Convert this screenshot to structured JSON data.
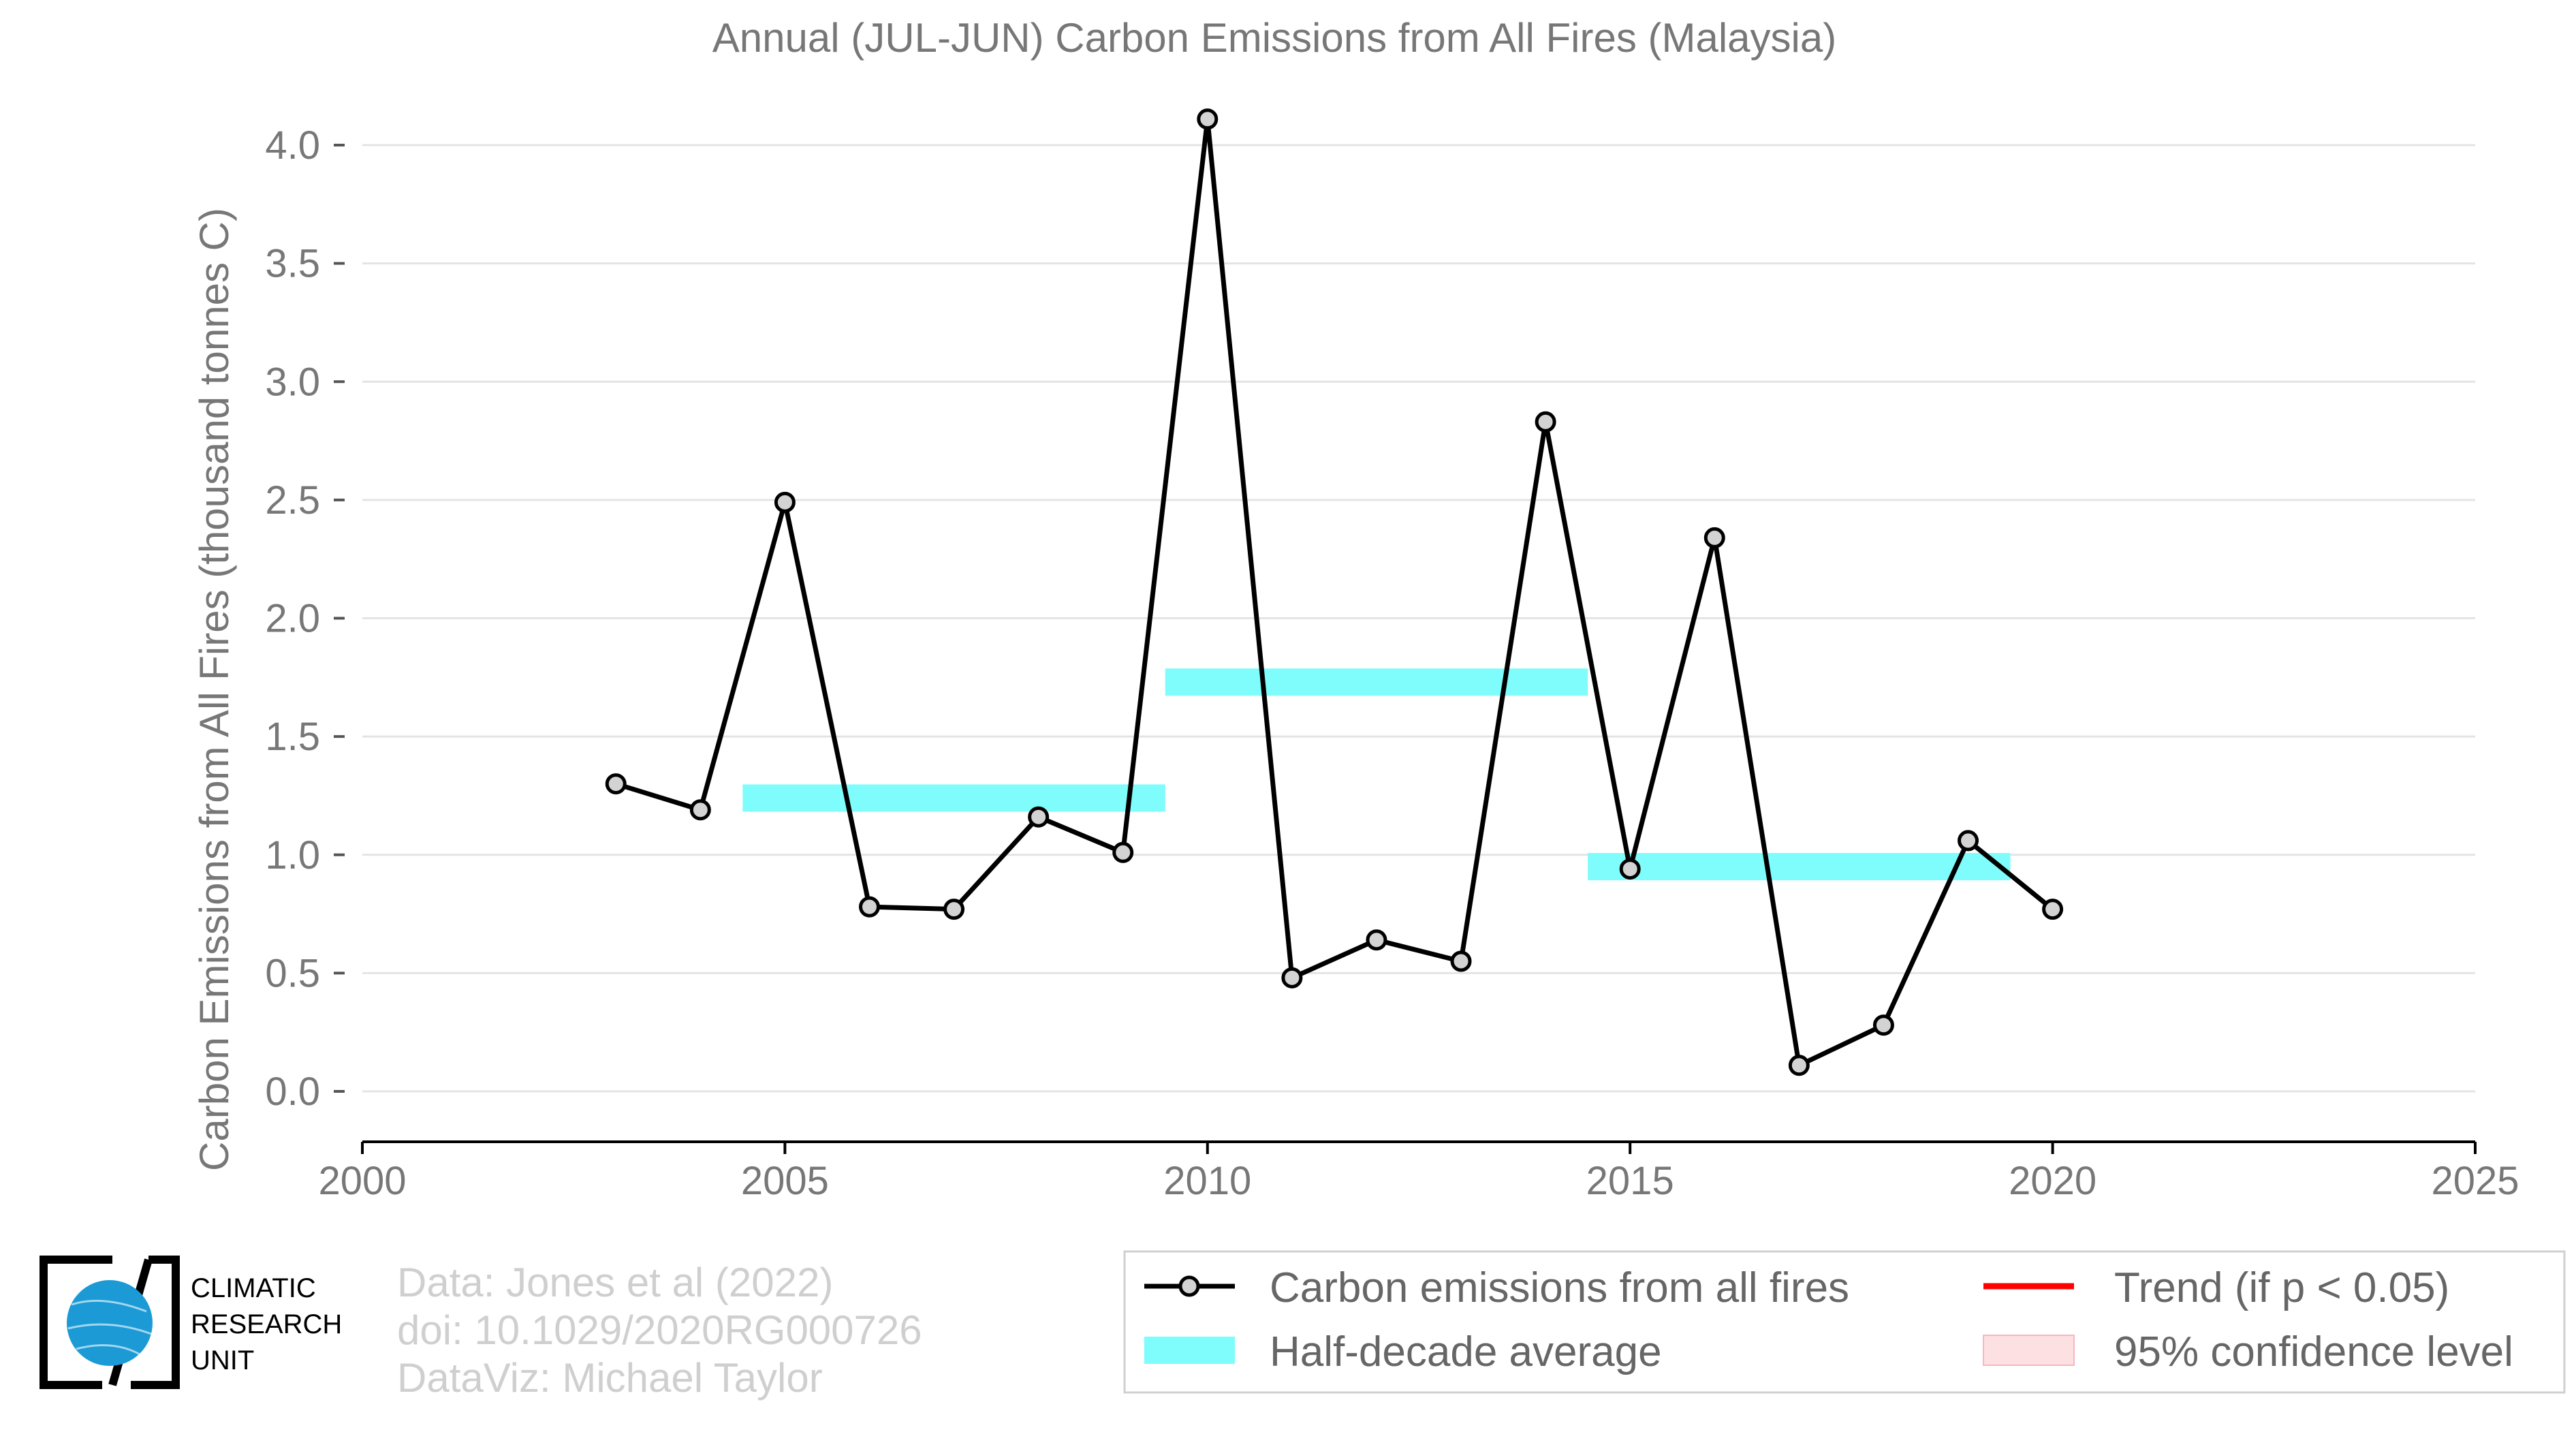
{
  "chart_data": {
    "type": "line",
    "title": "Annual (JUL-JUN) Carbon Emissions from All Fires (Malaysia)",
    "xlabel": "",
    "ylabel": "Carbon Emissions from All Fires (thousand tonnes C)",
    "xlim": [
      2000,
      2025
    ],
    "ylim": [
      0,
      4.2
    ],
    "x_ticks": [
      2000,
      2005,
      2010,
      2015,
      2020,
      2025
    ],
    "x_tick_labels": [
      "2000",
      "2005",
      "2010",
      "2015",
      "2020",
      "2025"
    ],
    "y_ticks": [
      0,
      0.5,
      1,
      1.5,
      2,
      2.5,
      3,
      3.5,
      4
    ],
    "y_tick_labels": [
      "0.0",
      "0.5",
      "1.0",
      "1.5",
      "2.0",
      "2.5",
      "3.0",
      "3.5",
      "4.0"
    ],
    "grid": true,
    "legend_position": "bottom-right",
    "series": [
      {
        "name": "Carbon emissions from all fires",
        "color": "#000000",
        "marker_fill": "#d3d3d3",
        "x": [
          2003,
          2004,
          2005,
          2006,
          2007,
          2008,
          2009,
          2010,
          2011,
          2012,
          2013,
          2014,
          2015,
          2016,
          2017,
          2018,
          2019,
          2020
        ],
        "y": [
          1.3,
          1.19,
          2.49,
          0.78,
          0.77,
          1.16,
          1.01,
          4.11,
          0.48,
          0.64,
          0.55,
          2.83,
          0.94,
          2.34,
          0.11,
          0.28,
          1.06,
          0.77
        ]
      }
    ],
    "half_decade_average": {
      "name": "Half-decade average",
      "color": "#7ffcfc",
      "segments": [
        {
          "x_start": 2004.5,
          "x_end": 2009.5,
          "y": 1.24
        },
        {
          "x_start": 2009.5,
          "x_end": 2014.5,
          "y": 1.73
        },
        {
          "x_start": 2014.5,
          "x_end": 2019.5,
          "y": 0.95
        }
      ]
    },
    "legend": [
      {
        "label": "Carbon emissions from all fires",
        "kind": "line-marker",
        "color": "#000000"
      },
      {
        "label": "Half-decade average",
        "kind": "band",
        "color": "#7ffcfc"
      },
      {
        "label": "Trend (if p < 0.05)",
        "kind": "line",
        "color": "#ff0000"
      },
      {
        "label": "95% confidence level",
        "kind": "patch",
        "color": "#fde0e2"
      }
    ]
  },
  "credits": [
    "Data: Jones et al (2022)",
    "doi: 10.1029/2020RG000726",
    "DataViz: Michael Taylor"
  ],
  "logo": {
    "lines": [
      "CLIMATIC",
      "RESEARCH",
      "UNIT"
    ],
    "icon": "globe-icon",
    "color": "#1b9ad6"
  }
}
